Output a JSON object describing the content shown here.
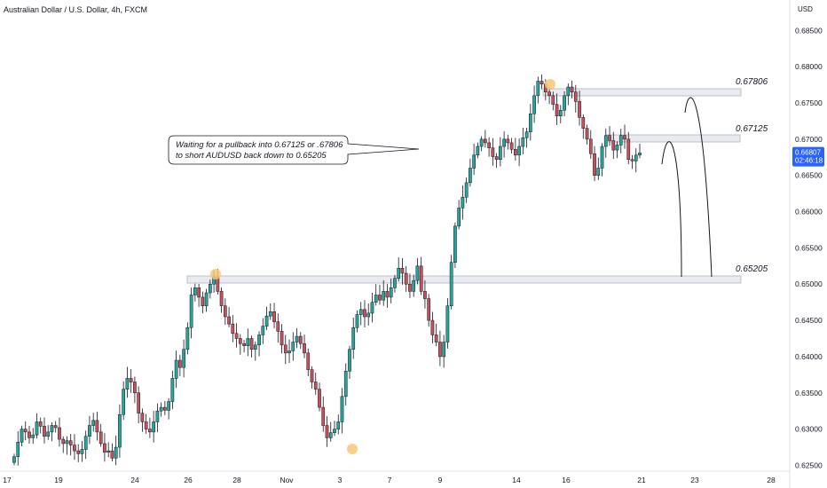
{
  "header": {
    "title": "Australian Dollar / U.S. Dollar, 4h, FXCM",
    "currency": "USD"
  },
  "annotations": {
    "callout_line1": "Waiting for a pullback into 0.67125 or .67806",
    "callout_line2": "to short AUDUSD back down to 0.65205",
    "levels": [
      {
        "label": "0.67806",
        "value": 0.67806
      },
      {
        "label": "0.67125",
        "value": 0.67125
      },
      {
        "label": "0.65205",
        "value": 0.65205
      }
    ]
  },
  "price_tag": {
    "price": "0.66807",
    "countdown": "02:46:18",
    "color": "#2962ff"
  },
  "colors": {
    "up": "#26a69a",
    "down": "#ef5350",
    "up_fill": "#26a69a",
    "down_fill": "#c8505a",
    "highlight": "#f9c774"
  },
  "chart_data": {
    "type": "candlestick",
    "title": "Australian Dollar / U.S. Dollar, 4h, FXCM",
    "y_axis": {
      "ticks": [
        "0.68500",
        "0.68000",
        "0.67500",
        "0.67000",
        "0.66500",
        "0.66000",
        "0.65500",
        "0.65000",
        "0.64500",
        "0.64000",
        "0.63500",
        "0.63000",
        "0.62500"
      ],
      "ylim": [
        0.6242,
        0.6892
      ]
    },
    "x_axis": {
      "ticks": [
        "17",
        "19",
        "24",
        "26",
        "28",
        "Nov",
        "3",
        "7",
        "9",
        "14",
        "16",
        "21",
        "23",
        "28"
      ]
    },
    "ohlc_close_path": [
      0.6262,
      0.6282,
      0.63,
      0.6296,
      0.6288,
      0.6292,
      0.631,
      0.6304,
      0.629,
      0.6296,
      0.6305,
      0.6302,
      0.6286,
      0.628,
      0.6284,
      0.6278,
      0.627,
      0.6266,
      0.6272,
      0.629,
      0.6305,
      0.6312,
      0.6296,
      0.628,
      0.6268,
      0.627,
      0.626,
      0.6275,
      0.632,
      0.6355,
      0.637,
      0.6365,
      0.635,
      0.6322,
      0.631,
      0.63,
      0.6296,
      0.631,
      0.6325,
      0.633,
      0.6326,
      0.6338,
      0.637,
      0.6395,
      0.6385,
      0.641,
      0.644,
      0.6485,
      0.6495,
      0.6482,
      0.647,
      0.6488,
      0.65,
      0.651,
      0.649,
      0.647,
      0.6455,
      0.6445,
      0.6432,
      0.6425,
      0.6418,
      0.6415,
      0.6425,
      0.641,
      0.6416,
      0.643,
      0.6442,
      0.6456,
      0.6462,
      0.6448,
      0.6435,
      0.6416,
      0.6405,
      0.6408,
      0.642,
      0.6428,
      0.6418,
      0.6405,
      0.6382,
      0.6365,
      0.6355,
      0.633,
      0.6305,
      0.6288,
      0.6295,
      0.63,
      0.631,
      0.6345,
      0.638,
      0.641,
      0.644,
      0.6458,
      0.6465,
      0.6455,
      0.646,
      0.6475,
      0.6485,
      0.6478,
      0.649,
      0.6482,
      0.6495,
      0.6508,
      0.6522,
      0.6515,
      0.65,
      0.649,
      0.6505,
      0.6525,
      0.649,
      0.648,
      0.645,
      0.643,
      0.642,
      0.64,
      0.642,
      0.647,
      0.653,
      0.658,
      0.6605,
      0.662,
      0.664,
      0.666,
      0.6678,
      0.669,
      0.67,
      0.6695,
      0.6688,
      0.6676,
      0.6672,
      0.669,
      0.67,
      0.6695,
      0.6686,
      0.6678,
      0.669,
      0.6702,
      0.671,
      0.6735,
      0.676,
      0.678,
      0.6776,
      0.6765,
      0.676,
      0.6748,
      0.6732,
      0.674,
      0.676,
      0.6772,
      0.6765,
      0.6752,
      0.673,
      0.6715,
      0.67,
      0.668,
      0.665,
      0.666,
      0.669,
      0.6705,
      0.6698,
      0.6685,
      0.6692,
      0.6705,
      0.67,
      0.6672,
      0.667,
      0.6678,
      0.6681
    ]
  }
}
